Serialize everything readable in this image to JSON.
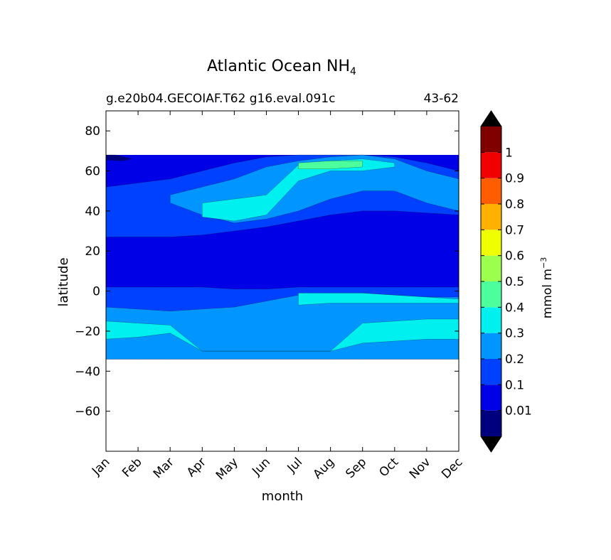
{
  "chart_data": {
    "type": "heatmap",
    "title_main": "Atlantic Ocean NH",
    "title_sub": "4",
    "subtitle_left": "g.e20b04.GECOIAF.T62 g16.eval.091c",
    "subtitle_right": "43-62",
    "xlabel": "month",
    "ylabel": "latitude",
    "categories": [
      "Jan",
      "Feb",
      "Mar",
      "Apr",
      "May",
      "Jun",
      "Jul",
      "Aug",
      "Sep",
      "Oct",
      "Nov",
      "Dec"
    ],
    "ylim": [
      -80,
      90
    ],
    "y_ticks": [
      80,
      60,
      40,
      20,
      0,
      -20,
      -40,
      -60
    ],
    "y_tick_labels": [
      "80",
      "60",
      "40",
      "20",
      "0",
      "−20",
      "−40",
      "−60"
    ],
    "data_extent": {
      "lat_min": -34,
      "lat_max": 68
    },
    "colorbar": {
      "label": "mmol m",
      "label_exp": "−3",
      "levels": [
        0,
        0.01,
        0.1,
        0.2,
        0.3,
        0.4,
        0.5,
        0.6,
        0.7,
        0.8,
        0.9,
        1,
        1.1
      ],
      "tick_labels": [
        "0.01",
        "0.1",
        "0.2",
        "0.3",
        "0.4",
        "0.5",
        "0.6",
        "0.7",
        "0.8",
        "0.9",
        "1"
      ],
      "colors": [
        "#00007f",
        "#0000e6",
        "#0040ff",
        "#0095ff",
        "#00efef",
        "#4dff9c",
        "#9cff4d",
        "#efff00",
        "#ffb000",
        "#ff5d00",
        "#f00000",
        "#800000"
      ],
      "extend": "both"
    },
    "contours": [
      {
        "level_index": 1,
        "months": [
          1,
          2,
          3,
          4,
          5,
          6,
          7,
          8,
          9,
          10,
          11,
          12
        ],
        "lat_low": [
          -34,
          -34,
          -34,
          -34,
          -34,
          -34,
          -34,
          -34,
          -34,
          -34,
          -34,
          -34
        ],
        "lat_high": [
          68,
          68,
          68,
          68,
          68,
          68,
          68,
          68,
          68,
          68,
          68,
          68
        ]
      },
      {
        "level_index": 2,
        "months": [
          1,
          2,
          3,
          4,
          5,
          6,
          7,
          8,
          9,
          10,
          11,
          12
        ],
        "lat_low": [
          -34,
          -34,
          -34,
          -34,
          -34,
          -34,
          -34,
          -34,
          -34,
          -34,
          -34,
          -34
        ],
        "lat_high": [
          2,
          2,
          2,
          2,
          1,
          1,
          2,
          2,
          2,
          2,
          2,
          2
        ]
      },
      {
        "level_index": 2,
        "months": [
          1,
          2,
          3,
          4,
          5,
          6,
          7,
          8,
          9,
          10,
          11,
          12
        ],
        "lat_low": [
          27,
          27,
          27,
          28,
          30,
          32,
          35,
          38,
          40,
          40,
          39,
          38
        ],
        "lat_high": [
          52,
          54,
          56,
          60,
          64,
          67,
          68,
          68,
          68,
          67,
          64,
          60
        ]
      },
      {
        "level_index": 3,
        "months": [
          1,
          2,
          3,
          4,
          5,
          6,
          7,
          8,
          9,
          10,
          11,
          12
        ],
        "lat_low": [
          -34,
          -34,
          -34,
          -34,
          -34,
          -34,
          -34,
          -34,
          -34,
          -34,
          -34,
          -34
        ],
        "lat_high": [
          -8,
          -9,
          -10,
          -9,
          -8,
          -5,
          -2,
          -1,
          -1,
          -2,
          -3,
          -3
        ]
      },
      {
        "level_index": 3,
        "months": [
          3,
          4,
          5,
          6,
          7,
          8,
          9,
          10,
          11,
          12
        ],
        "lat_low": [
          44,
          38,
          34,
          36,
          40,
          46,
          50,
          50,
          44,
          40
        ],
        "lat_high": [
          48,
          52,
          56,
          62,
          65,
          67,
          68,
          66,
          60,
          56
        ]
      },
      {
        "level_index": 4,
        "months": [
          1,
          2,
          3,
          4,
          5,
          6,
          7,
          8,
          9,
          10,
          11,
          12
        ],
        "lat_low": [
          -24,
          -23,
          -21,
          -30,
          -30,
          -30,
          -30,
          -30,
          -26,
          -25,
          -24,
          -24
        ],
        "lat_high": [
          -15,
          -16,
          -17,
          -30,
          -30,
          -30,
          -30,
          -30,
          -16,
          -15,
          -14,
          -14
        ]
      },
      {
        "level_index": 4,
        "months": [
          7,
          8,
          9,
          10,
          11,
          12
        ],
        "lat_low": [
          -7,
          -6,
          -6,
          -6,
          -6,
          -6
        ],
        "lat_high": [
          -1,
          -1,
          -1,
          -2,
          -3,
          -4
        ]
      },
      {
        "level_index": 4,
        "months": [
          4,
          5,
          6,
          7,
          8,
          9,
          10
        ],
        "lat_low": [
          37,
          35,
          38,
          55,
          60,
          60,
          62
        ],
        "lat_high": [
          44,
          46,
          48,
          63,
          65,
          66,
          64
        ]
      },
      {
        "level_index": 5,
        "months": [
          7,
          8,
          9
        ],
        "lat_low": [
          61,
          61,
          62
        ],
        "lat_high": [
          64,
          65,
          65
        ]
      }
    ]
  }
}
